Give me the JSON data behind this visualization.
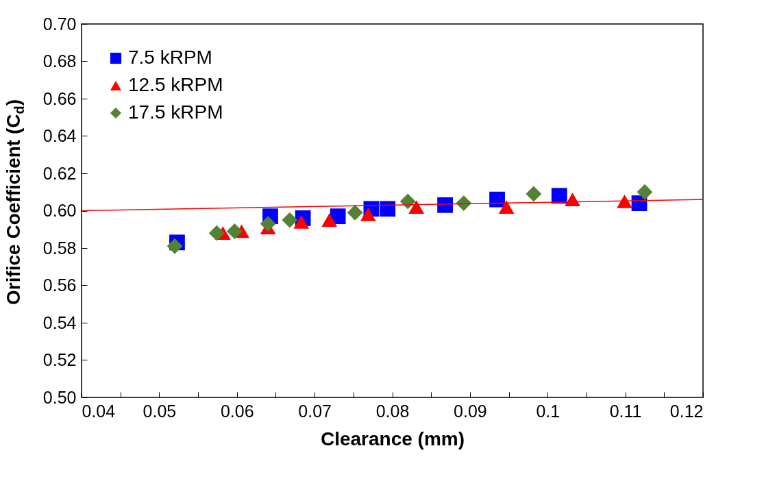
{
  "chart_data": {
    "type": "scatter",
    "xlabel": "Clearance (mm)",
    "ylabel": "Orifice Coefficient (C$_{d}$)",
    "xlim": [
      0.04,
      0.12
    ],
    "xticks": [
      0.04,
      {
        "value": 0.045,
        "label": null
      },
      0.05,
      {
        "value": 0.055,
        "label": null
      },
      0.06,
      {
        "value": 0.065,
        "label": null
      },
      0.07,
      {
        "value": 0.075,
        "label": null
      },
      0.08,
      {
        "value": 0.085,
        "label": null
      },
      0.09,
      {
        "value": 0.095,
        "label": null
      },
      0.1,
      {
        "value": 0.105,
        "label": null
      },
      0.11,
      {
        "value": 0.115,
        "label": null
      },
      0.12
    ],
    "ylim": [
      0.5,
      0.7
    ],
    "yticks": [
      {
        "value": 0.5,
        "label": "0.50"
      },
      {
        "value": 0.52,
        "label": "0.52"
      },
      {
        "value": 0.54,
        "label": "0.54"
      },
      {
        "value": 0.56,
        "label": "0.56"
      },
      {
        "value": 0.58,
        "label": "0.58"
      },
      {
        "value": 0.6,
        "label": "0.60"
      },
      {
        "value": 0.62,
        "label": "0.62"
      },
      {
        "value": 0.64,
        "label": "0.64"
      },
      {
        "value": 0.66,
        "label": "0.66"
      },
      {
        "value": 0.68,
        "label": "0.68"
      },
      {
        "value": 0.7,
        "label": "0.70"
      }
    ],
    "grid": false,
    "legend": "top left",
    "series": [
      {
        "name": "7.5 kRPM",
        "color": "#0000ff",
        "marker": "square",
        "x": [
          0.0523,
          0.0643,
          0.0685,
          0.073,
          0.0773,
          0.0794,
          0.0868,
          0.0935,
          0.1015,
          0.1118
        ],
        "values": [
          0.583,
          0.597,
          0.596,
          0.597,
          0.601,
          0.601,
          0.603,
          0.606,
          0.608,
          0.604
        ]
      },
      {
        "name": "12.5 kRPM",
        "color": "#ff0000",
        "marker": "triangle",
        "x": [
          0.0582,
          0.0606,
          0.064,
          0.0683,
          0.0719,
          0.0769,
          0.0831,
          0.0947,
          0.1032,
          0.1099
        ],
        "values": [
          0.588,
          0.589,
          0.591,
          0.594,
          0.595,
          0.598,
          0.602,
          0.602,
          0.606,
          0.605
        ]
      },
      {
        "name": "17.5 kRPM",
        "color": "#548235",
        "marker": "diamond",
        "x": [
          0.052,
          0.0574,
          0.0597,
          0.064,
          0.0668,
          0.0752,
          0.082,
          0.0892,
          0.0982,
          0.1125
        ],
        "values": [
          0.581,
          0.588,
          0.589,
          0.593,
          0.595,
          0.599,
          0.605,
          0.604,
          0.609,
          0.61
        ]
      },
      {
        "type": "line",
        "color": "#ff0000",
        "x": [
          0.04,
          0.12
        ],
        "values": [
          0.6,
          0.606
        ]
      }
    ]
  }
}
